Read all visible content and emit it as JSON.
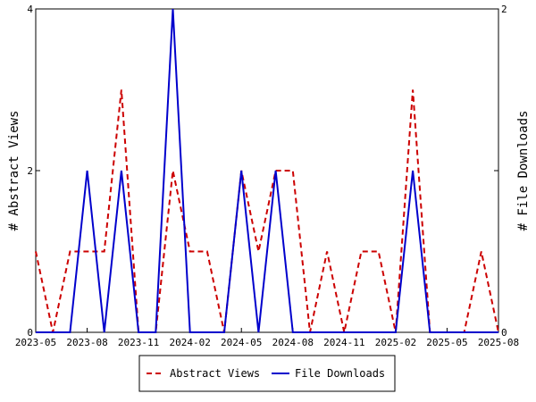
{
  "chart_data": {
    "type": "line",
    "x_tick_labels": [
      "2023-05",
      "2023-08",
      "2023-11",
      "2024-02",
      "2024-05",
      "2024-08",
      "2024-11",
      "2025-02",
      "2025-05",
      "2025-08"
    ],
    "x": [
      "2023-05",
      "2023-06",
      "2023-07",
      "2023-08",
      "2023-09",
      "2023-10",
      "2023-11",
      "2023-12",
      "2024-01",
      "2024-02",
      "2024-03",
      "2024-04",
      "2024-05",
      "2024-06",
      "2024-07",
      "2024-08",
      "2024-09",
      "2024-10",
      "2024-11",
      "2024-12",
      "2025-01",
      "2025-02",
      "2025-03",
      "2025-04",
      "2025-05",
      "2025-06",
      "2025-07",
      "2025-08"
    ],
    "series": [
      {
        "name": "Abstract Views",
        "axis": "left",
        "color": "#cc0000",
        "style": "dashed",
        "values": [
          1,
          0,
          1,
          1,
          1,
          3,
          0,
          0,
          2,
          1,
          1,
          0,
          2,
          1,
          2,
          2,
          0,
          1,
          0,
          1,
          1,
          0,
          3,
          0,
          0,
          0,
          1,
          0
        ]
      },
      {
        "name": "File Downloads",
        "axis": "right",
        "color": "#0000cc",
        "style": "solid",
        "values": [
          0,
          0,
          0,
          1,
          0,
          1,
          0,
          0,
          2,
          0,
          0,
          0,
          1,
          0,
          1,
          0,
          0,
          0,
          0,
          0,
          0,
          0,
          1,
          0,
          0,
          0,
          0,
          0
        ]
      }
    ],
    "ylabel_left": "# Abstract Views",
    "ylabel_right": "# File Downloads",
    "ylim_left": [
      0,
      4
    ],
    "ylim_right": [
      0,
      2
    ],
    "yticks_left": [
      "0",
      "2",
      "4"
    ],
    "yticks_right": [
      "0",
      "1",
      "2"
    ],
    "grid": false,
    "legend_position": "bottom-center"
  }
}
